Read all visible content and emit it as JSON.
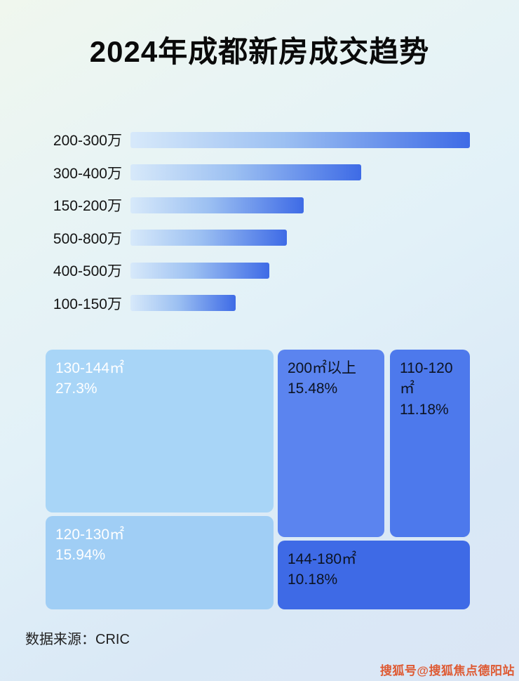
{
  "title": "2024年成都新房成交趋势",
  "chart_data": [
    {
      "type": "bar",
      "orientation": "horizontal",
      "title": "2024年成都新房成交趋势",
      "categories": [
        "200-300万",
        "300-400万",
        "150-200万",
        "500-800万",
        "400-500万",
        "100-150万"
      ],
      "values": [
        100,
        68,
        51,
        46,
        41,
        31
      ],
      "values_note": "no numeric axis or data labels shown; values are estimated bar lengths as percent of the longest bar",
      "xlabel": "",
      "ylabel": "",
      "grid": false,
      "legend": false
    },
    {
      "type": "treemap",
      "items": [
        {
          "label": "130-144㎡",
          "value_pct": 27.3
        },
        {
          "label": "120-130㎡",
          "value_pct": 15.94
        },
        {
          "label": "200㎡以上",
          "value_pct": 15.48
        },
        {
          "label": "110-120㎡",
          "value_pct": 11.18
        },
        {
          "label": "144-180㎡",
          "value_pct": 10.18
        }
      ],
      "legend": false
    }
  ],
  "bars": {
    "items": [
      {
        "label": "200-300万",
        "width_pct": 100
      },
      {
        "label": "300-400万",
        "width_pct": 68
      },
      {
        "label": "150-200万",
        "width_pct": 51
      },
      {
        "label": "500-800万",
        "width_pct": 46
      },
      {
        "label": "400-500万",
        "width_pct": 41
      },
      {
        "label": "100-150万",
        "width_pct": 31
      }
    ]
  },
  "treemap": {
    "boxes": [
      {
        "label": "130-144㎡",
        "pct": "27.3%"
      },
      {
        "label": "200㎡以上",
        "pct": "15.48%"
      },
      {
        "label": "110-120㎡",
        "pct": "11.18%"
      },
      {
        "label": "120-130㎡",
        "pct": "15.94%"
      },
      {
        "label": "144-180㎡",
        "pct": "10.18%"
      }
    ]
  },
  "footer": {
    "source": "数据来源：CRIC"
  },
  "watermark": {
    "text": "搜狐号@搜狐焦点德阳站"
  },
  "colors": {
    "bar_gradient_start": "#d7e9fa",
    "bar_gradient_end": "#3e6be6",
    "treemap_light_blue": "#a8d5f7",
    "treemap_mid_blue": "#5b84ef",
    "treemap_deep_blue": "#3e6ae6",
    "watermark_orange": "#de5a33",
    "title_black": "#0a0a0a"
  }
}
